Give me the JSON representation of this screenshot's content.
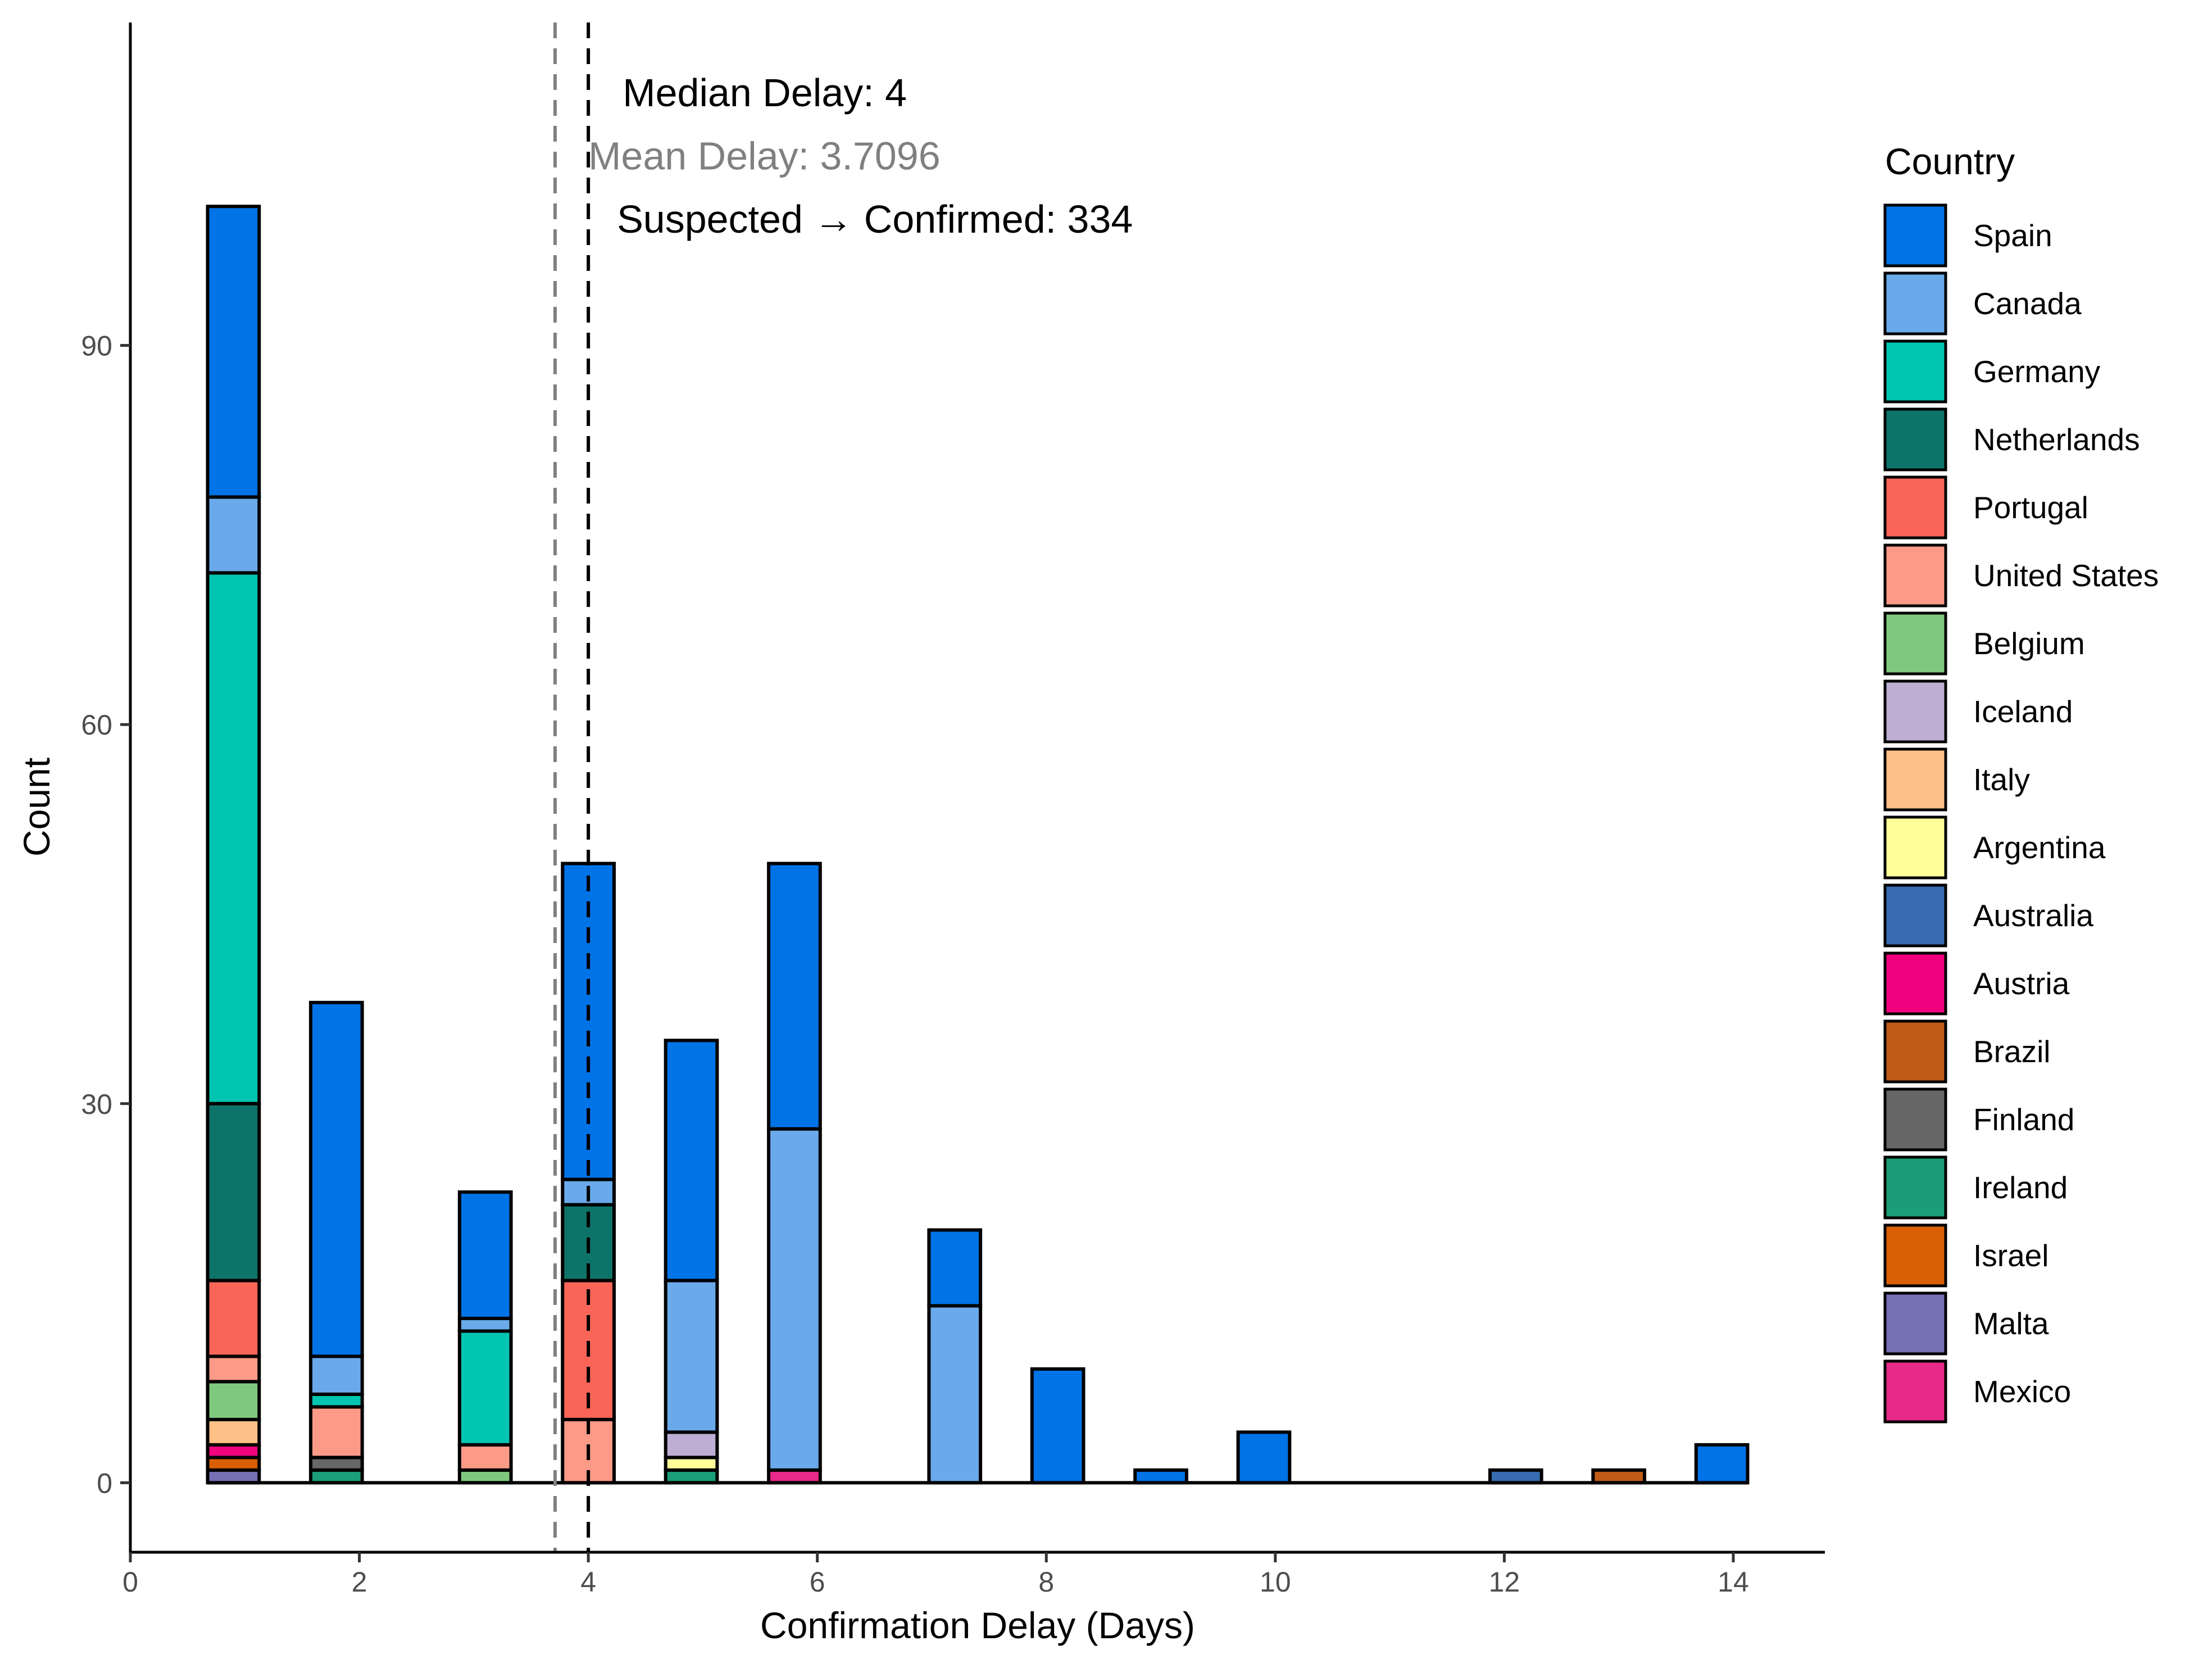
{
  "chart_data": {
    "type": "bar",
    "stacked": true,
    "xlabel": "Confirmation Delay (Days)",
    "ylabel": "Count",
    "xlim": [
      0,
      14.8
    ],
    "ylim": [
      -5.5,
      116
    ],
    "xticks": [
      0,
      2,
      4,
      6,
      8,
      10,
      12,
      14
    ],
    "yticks": [
      0,
      30,
      60,
      90
    ],
    "bin_width": 0.45,
    "grid": false,
    "legend": {
      "title": "Country",
      "placement": "right",
      "entries": [
        {
          "name": "Spain",
          "color": "#0073E6"
        },
        {
          "name": "Canada",
          "color": "#6AAAEA"
        },
        {
          "name": "Germany",
          "color": "#00C5B0"
        },
        {
          "name": "Netherlands",
          "color": "#0E746A"
        },
        {
          "name": "Portugal",
          "color": "#FB6558"
        },
        {
          "name": "United States",
          "color": "#FC9A88"
        },
        {
          "name": "Belgium",
          "color": "#7FC97F"
        },
        {
          "name": "Iceland",
          "color": "#BEAED4"
        },
        {
          "name": "Italy",
          "color": "#FDC086"
        },
        {
          "name": "Argentina",
          "color": "#FFFF99"
        },
        {
          "name": "Australia",
          "color": "#386CB0"
        },
        {
          "name": "Austria",
          "color": "#F0027F"
        },
        {
          "name": "Brazil",
          "color": "#BF5B17"
        },
        {
          "name": "Finland",
          "color": "#666666"
        },
        {
          "name": "Ireland",
          "color": "#1B9E77"
        },
        {
          "name": "Israel",
          "color": "#D95F02"
        },
        {
          "name": "Malta",
          "color": "#7570B3"
        },
        {
          "name": "Mexico",
          "color": "#E7298A"
        }
      ]
    },
    "bars": [
      {
        "x": 0.9,
        "segments": {
          "Malta": 1,
          "Israel": 1,
          "Austria": 1,
          "Italy": 2,
          "Belgium": 3,
          "United States": 2,
          "Portugal": 6,
          "Netherlands": 14,
          "Germany": 42,
          "Canada": 6,
          "Spain": 23
        }
      },
      {
        "x": 1.8,
        "segments": {
          "Ireland": 1,
          "Finland": 1,
          "United States": 4,
          "Germany": 1,
          "Canada": 3,
          "Spain": 28
        }
      },
      {
        "x": 3.1,
        "segments": {
          "Belgium": 1,
          "United States": 2,
          "Germany": 9,
          "Canada": 1,
          "Spain": 10
        }
      },
      {
        "x": 4.0,
        "segments": {
          "United States": 5,
          "Portugal": 11,
          "Netherlands": 6,
          "Canada": 2,
          "Spain": 25
        }
      },
      {
        "x": 4.9,
        "segments": {
          "Argentina": 1,
          "Iceland": 2,
          "Ireland": 1,
          "Germany": 0,
          "Canada": 12,
          "Spain": 19
        }
      },
      {
        "x": 5.8,
        "segments": {
          "Mexico": 1,
          "Canada": 27,
          "Spain": 21
        }
      },
      {
        "x": 7.2,
        "segments": {
          "Canada": 14,
          "Spain": 6
        }
      },
      {
        "x": 8.1,
        "segments": {
          "Spain": 9
        }
      },
      {
        "x": 9.0,
        "segments": {
          "Spain": 1
        }
      },
      {
        "x": 9.9,
        "segments": {
          "Spain": 4
        }
      },
      {
        "x": 12.1,
        "segments": {
          "Australia": 1
        }
      },
      {
        "x": 13.0,
        "segments": {
          "Brazil": 1
        }
      },
      {
        "x": 13.9,
        "segments": {
          "Spain": 3
        }
      }
    ],
    "reference_lines": [
      {
        "name": "mean",
        "x": 3.7096,
        "color": "#808080",
        "style": "dashed"
      },
      {
        "name": "median",
        "x": 4,
        "color": "#000000",
        "style": "dashed"
      }
    ],
    "annotations": [
      {
        "text": "Median Delay: 4",
        "x": 4.3,
        "y": 110,
        "color": "#000000"
      },
      {
        "text": "Mean Delay: 3.7096",
        "x": 4.0,
        "y": 105,
        "color": "#808080"
      },
      {
        "text": "Suspected → Confirmed: 334",
        "x": 4.25,
        "y": 100,
        "color": "#000000"
      }
    ]
  }
}
